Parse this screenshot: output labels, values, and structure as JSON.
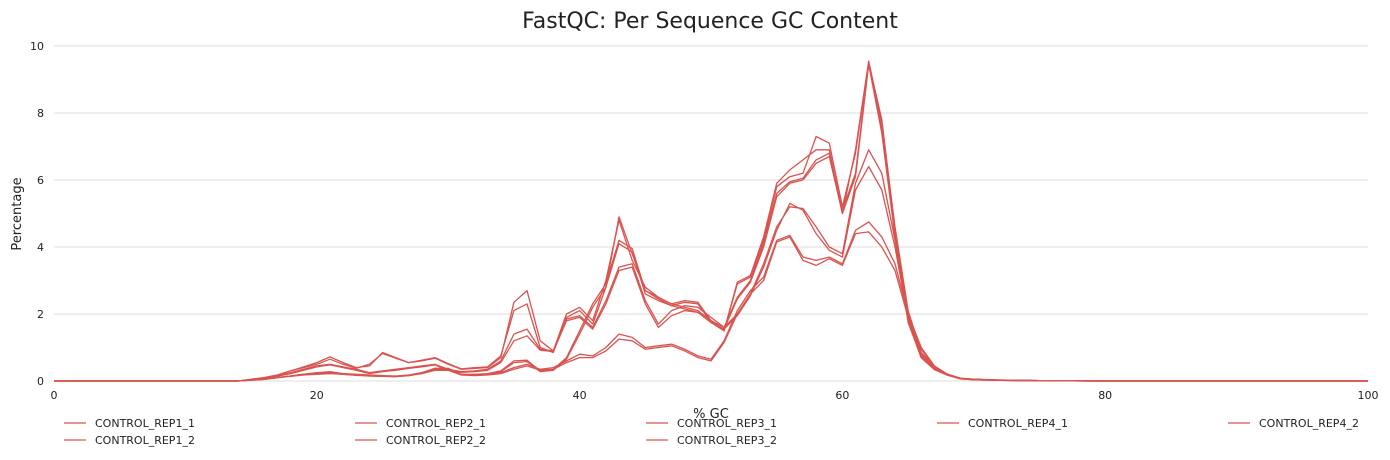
{
  "chart_data": {
    "type": "line",
    "title": "FastQC: Per Sequence GC Content",
    "xlabel": "% GC",
    "ylabel": "Percentage",
    "xlim": [
      0,
      100
    ],
    "ylim": [
      0,
      10
    ],
    "xticks": [
      0,
      20,
      40,
      60,
      80,
      100
    ],
    "yticks": [
      0,
      2,
      4,
      6,
      8,
      10
    ],
    "grid": "horizontal",
    "legend_position": "bottom",
    "color": "#d9534f",
    "x": [
      0,
      14,
      16,
      17,
      18,
      19,
      20,
      21,
      22,
      23,
      24,
      25,
      26,
      27,
      28,
      29,
      30,
      31,
      32,
      33,
      34,
      35,
      36,
      37,
      38,
      39,
      40,
      41,
      42,
      43,
      44,
      45,
      46,
      47,
      48,
      49,
      50,
      51,
      52,
      53,
      54,
      55,
      56,
      57,
      58,
      59,
      60,
      61,
      62,
      63,
      64,
      65,
      66,
      67,
      68,
      69,
      70,
      72,
      75,
      80,
      100
    ],
    "series": [
      {
        "name": "CONTROL_REP1_1",
        "values": [
          0,
          0,
          0.1,
          0.18,
          0.3,
          0.42,
          0.55,
          0.72,
          0.55,
          0.4,
          0.45,
          0.85,
          0.7,
          0.55,
          0.6,
          0.68,
          0.5,
          0.35,
          0.38,
          0.4,
          0.7,
          2.35,
          2.7,
          1.2,
          0.9,
          2.0,
          2.2,
          1.8,
          3.0,
          4.8,
          3.6,
          2.8,
          2.5,
          2.3,
          2.4,
          2.35,
          1.8,
          1.5,
          2.9,
          3.1,
          4.2,
          5.8,
          6.1,
          6.2,
          7.3,
          7.1,
          5.2,
          6.8,
          9.5,
          7.8,
          4.5,
          2.0,
          0.8,
          0.4,
          0.2,
          0.08,
          0.05,
          0.03,
          0.01,
          0,
          0
        ]
      },
      {
        "name": "CONTROL_REP1_2",
        "values": [
          0,
          0,
          0.1,
          0.18,
          0.3,
          0.4,
          0.5,
          0.65,
          0.5,
          0.38,
          0.5,
          0.82,
          0.68,
          0.55,
          0.62,
          0.7,
          0.52,
          0.36,
          0.4,
          0.42,
          0.75,
          2.1,
          2.3,
          1.0,
          0.85,
          1.9,
          2.1,
          1.7,
          2.8,
          4.9,
          3.8,
          2.7,
          2.45,
          2.25,
          2.35,
          2.3,
          1.75,
          1.5,
          2.95,
          3.15,
          4.3,
          5.9,
          6.3,
          6.6,
          6.9,
          6.9,
          5.0,
          6.9,
          9.55,
          7.7,
          4.6,
          2.1,
          0.85,
          0.42,
          0.2,
          0.08,
          0.05,
          0.03,
          0.01,
          0,
          0
        ]
      },
      {
        "name": "CONTROL_REP2_1",
        "values": [
          0,
          0,
          0.08,
          0.15,
          0.25,
          0.35,
          0.45,
          0.5,
          0.42,
          0.35,
          0.25,
          0.3,
          0.35,
          0.4,
          0.45,
          0.5,
          0.35,
          0.28,
          0.3,
          0.35,
          0.6,
          1.4,
          1.55,
          0.95,
          0.9,
          1.85,
          1.95,
          1.6,
          2.4,
          3.4,
          3.5,
          2.4,
          1.7,
          2.1,
          2.25,
          2.2,
          1.9,
          1.6,
          2.0,
          2.6,
          3.5,
          4.6,
          5.2,
          5.15,
          4.6,
          4.0,
          3.8,
          5.9,
          6.9,
          6.2,
          4.2,
          1.9,
          0.8,
          0.4,
          0.2,
          0.07,
          0.05,
          0.02,
          0.01,
          0,
          0
        ]
      },
      {
        "name": "CONTROL_REP2_2",
        "values": [
          0,
          0,
          0.07,
          0.14,
          0.22,
          0.32,
          0.42,
          0.48,
          0.4,
          0.32,
          0.22,
          0.28,
          0.32,
          0.38,
          0.42,
          0.48,
          0.32,
          0.26,
          0.28,
          0.32,
          0.55,
          1.2,
          1.35,
          0.92,
          0.88,
          1.8,
          1.9,
          1.55,
          2.3,
          3.3,
          3.4,
          2.3,
          1.6,
          1.95,
          2.1,
          2.05,
          1.75,
          1.55,
          1.95,
          2.55,
          3.4,
          4.5,
          5.3,
          5.1,
          4.4,
          3.9,
          3.7,
          5.7,
          6.4,
          5.7,
          4.0,
          1.85,
          0.75,
          0.38,
          0.18,
          0.07,
          0.04,
          0.02,
          0.01,
          0,
          0
        ]
      },
      {
        "name": "CONTROL_REP3_1",
        "values": [
          0,
          0,
          0.05,
          0.1,
          0.15,
          0.2,
          0.22,
          0.25,
          0.22,
          0.2,
          0.18,
          0.16,
          0.15,
          0.18,
          0.25,
          0.35,
          0.35,
          0.2,
          0.18,
          0.2,
          0.25,
          0.4,
          0.5,
          0.35,
          0.4,
          0.6,
          0.8,
          0.75,
          1.0,
          1.4,
          1.3,
          1.0,
          1.05,
          1.1,
          0.95,
          0.75,
          0.65,
          1.2,
          2.1,
          2.7,
          3.1,
          4.2,
          4.35,
          3.7,
          3.6,
          3.7,
          3.5,
          4.5,
          4.75,
          4.3,
          3.5,
          2.0,
          1.0,
          0.45,
          0.2,
          0.07,
          0.05,
          0.02,
          0.01,
          0,
          0
        ]
      },
      {
        "name": "CONTROL_REP3_2",
        "values": [
          0,
          0,
          0.05,
          0.1,
          0.14,
          0.18,
          0.2,
          0.22,
          0.2,
          0.18,
          0.15,
          0.14,
          0.13,
          0.16,
          0.22,
          0.32,
          0.32,
          0.18,
          0.16,
          0.18,
          0.22,
          0.35,
          0.45,
          0.32,
          0.35,
          0.55,
          0.7,
          0.7,
          0.9,
          1.25,
          1.2,
          0.95,
          1.0,
          1.05,
          0.9,
          0.7,
          0.6,
          1.15,
          2.0,
          2.6,
          3.0,
          4.15,
          4.3,
          3.6,
          3.45,
          3.65,
          3.45,
          4.4,
          4.45,
          4.0,
          3.3,
          1.9,
          0.95,
          0.42,
          0.2,
          0.07,
          0.04,
          0.02,
          0.01,
          0,
          0
        ]
      },
      {
        "name": "CONTROL_REP4_1",
        "values": [
          0,
          0,
          0.05,
          0.1,
          0.15,
          0.2,
          0.25,
          0.28,
          0.22,
          0.18,
          0.16,
          0.15,
          0.14,
          0.17,
          0.25,
          0.38,
          0.38,
          0.2,
          0.2,
          0.22,
          0.3,
          0.6,
          0.62,
          0.3,
          0.35,
          0.7,
          1.5,
          2.3,
          2.9,
          4.2,
          3.95,
          2.7,
          2.5,
          2.3,
          2.2,
          2.1,
          1.8,
          1.6,
          2.5,
          3.0,
          4.1,
          5.6,
          5.95,
          6.05,
          6.6,
          6.8,
          5.1,
          6.2,
          9.5,
          7.5,
          4.4,
          1.8,
          0.7,
          0.35,
          0.18,
          0.07,
          0.05,
          0.02,
          0.01,
          0,
          0
        ]
      },
      {
        "name": "CONTROL_REP4_2",
        "values": [
          0,
          0,
          0.05,
          0.1,
          0.15,
          0.2,
          0.24,
          0.26,
          0.2,
          0.17,
          0.15,
          0.14,
          0.13,
          0.16,
          0.24,
          0.36,
          0.36,
          0.19,
          0.19,
          0.21,
          0.28,
          0.55,
          0.58,
          0.28,
          0.32,
          0.65,
          1.4,
          2.2,
          2.8,
          4.1,
          3.85,
          2.6,
          2.4,
          2.25,
          2.15,
          2.05,
          1.75,
          1.55,
          2.45,
          2.95,
          4.0,
          5.5,
          5.9,
          6.0,
          6.5,
          6.7,
          5.0,
          6.1,
          9.45,
          7.4,
          4.3,
          1.75,
          0.7,
          0.34,
          0.17,
          0.06,
          0.04,
          0.02,
          0.01,
          0,
          0
        ]
      }
    ]
  }
}
